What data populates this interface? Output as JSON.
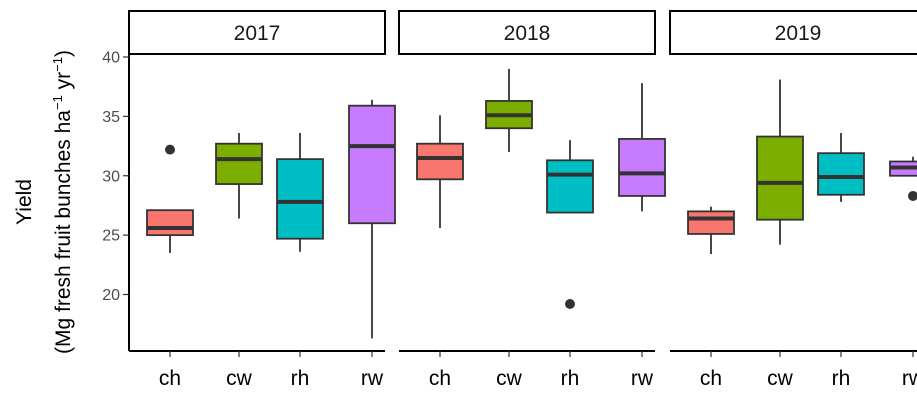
{
  "chart_data": {
    "type": "boxplot",
    "ylabel_line1": "Yield",
    "ylabel_line2_prefix": "(Mg fresh fruit bunches ha",
    "ylabel_sup1": "−1",
    "ylabel_mid": " yr",
    "ylabel_sup2": "−1",
    "ylabel_suffix": ")",
    "yticks": [
      "20",
      "25",
      "30",
      "35",
      "40"
    ],
    "ylim": [
      15,
      41
    ],
    "categories": [
      "ch",
      "cw",
      "rh",
      "rw"
    ],
    "colors": {
      "ch": "#F8766D",
      "cw": "#7CAE00",
      "rh": "#00BFC4",
      "rw": "#C77CFF"
    },
    "panels": [
      {
        "year": "2017",
        "boxes": [
          {
            "cat": "ch",
            "wlo": 23.5,
            "q1": 25.0,
            "med": 25.6,
            "q3": 27.1,
            "whi": 27.1,
            "outliers": [
              32.2
            ]
          },
          {
            "cat": "cw",
            "wlo": 26.4,
            "q1": 29.3,
            "med": 31.4,
            "q3": 32.7,
            "whi": 33.6,
            "outliers": []
          },
          {
            "cat": "rh",
            "wlo": 23.6,
            "q1": 24.7,
            "med": 27.8,
            "q3": 31.4,
            "whi": 33.6,
            "outliers": []
          },
          {
            "cat": "rw",
            "wlo": 16.3,
            "q1": 26.0,
            "med": 32.5,
            "q3": 35.9,
            "whi": 36.4,
            "outliers": []
          }
        ]
      },
      {
        "year": "2018",
        "boxes": [
          {
            "cat": "ch",
            "wlo": 25.6,
            "q1": 29.7,
            "med": 31.5,
            "q3": 32.7,
            "whi": 35.1,
            "outliers": []
          },
          {
            "cat": "cw",
            "wlo": 32.0,
            "q1": 34.0,
            "med": 35.1,
            "q3": 36.3,
            "whi": 39.0,
            "outliers": []
          },
          {
            "cat": "rh",
            "wlo": 26.9,
            "q1": 26.9,
            "med": 30.1,
            "q3": 31.3,
            "whi": 33.0,
            "outliers": [
              19.2
            ]
          },
          {
            "cat": "rw",
            "wlo": 27.0,
            "q1": 28.3,
            "med": 30.2,
            "q3": 33.1,
            "whi": 37.8,
            "outliers": []
          }
        ]
      },
      {
        "year": "2019",
        "boxes": [
          {
            "cat": "ch",
            "wlo": 23.4,
            "q1": 25.1,
            "med": 26.4,
            "q3": 27.0,
            "whi": 27.4,
            "outliers": []
          },
          {
            "cat": "cw",
            "wlo": 24.2,
            "q1": 26.3,
            "med": 29.4,
            "q3": 33.3,
            "whi": 38.1,
            "outliers": []
          },
          {
            "cat": "rh",
            "wlo": 27.8,
            "q1": 28.4,
            "med": 29.9,
            "q3": 31.9,
            "whi": 33.6,
            "outliers": []
          },
          {
            "cat": "rw",
            "wlo": 30.0,
            "q1": 30.0,
            "med": 30.7,
            "q3": 31.2,
            "whi": 31.6,
            "outliers": [
              28.3
            ]
          }
        ]
      }
    ]
  }
}
